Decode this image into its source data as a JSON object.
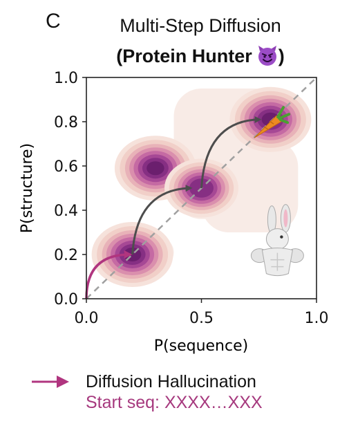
{
  "panel_letter": "C",
  "title_line1": "Multi-Step Diffusion",
  "title_line2": "(Protein Hunter",
  "title_line2_close": ")",
  "title_emoji": "smiling-devil-icon",
  "legend_label": "Diffusion Hallucination",
  "start_seq_label": "Start seq: XXXX…XXX",
  "colors": {
    "hallucination_arrow": "#b0357f",
    "step_arrow": "#4d4d4d",
    "diagonal": "#a0a0a0",
    "density_dark": "#6b1f6e",
    "density_light": "#f6e6e0",
    "start_seq_text": "#a6397e"
  },
  "chart_data": {
    "type": "density_contour",
    "xlabel": "P(sequence)",
    "ylabel": "P(structure)",
    "xlim": [
      0.0,
      1.0
    ],
    "ylim": [
      0.0,
      1.0
    ],
    "xticks": [
      0.0,
      0.5,
      1.0
    ],
    "xtick_labels": [
      "0.0",
      "0.5",
      "1.0"
    ],
    "yticks": [
      0.0,
      0.2,
      0.4,
      0.6,
      0.8,
      1.0
    ],
    "ytick_labels": [
      "0.0",
      "0.2",
      "0.4",
      "0.6",
      "0.8",
      "1.0"
    ],
    "grid": false,
    "density_peaks": [
      {
        "x": 0.2,
        "y": 0.2,
        "weight": 1.0
      },
      {
        "x": 0.3,
        "y": 0.59,
        "weight": 1.0
      },
      {
        "x": 0.5,
        "y": 0.5,
        "weight": 0.9
      },
      {
        "x": 0.8,
        "y": 0.81,
        "weight": 1.0
      }
    ],
    "diagonal_reference": [
      [
        0.0,
        0.0
      ],
      [
        1.0,
        1.0
      ]
    ],
    "hallucination_step": {
      "from": [
        0.0,
        0.0
      ],
      "to": [
        0.2,
        0.2
      ]
    },
    "diffusion_steps": [
      {
        "from": [
          0.2,
          0.2
        ],
        "to": [
          0.5,
          0.5
        ]
      },
      {
        "from": [
          0.5,
          0.5
        ],
        "to": [
          0.8,
          0.81
        ]
      }
    ],
    "icons": [
      {
        "name": "carrot-icon",
        "x": 0.79,
        "y": 0.79
      },
      {
        "name": "muscular-bunny-icon",
        "x": 0.83,
        "y": 0.22
      }
    ]
  }
}
